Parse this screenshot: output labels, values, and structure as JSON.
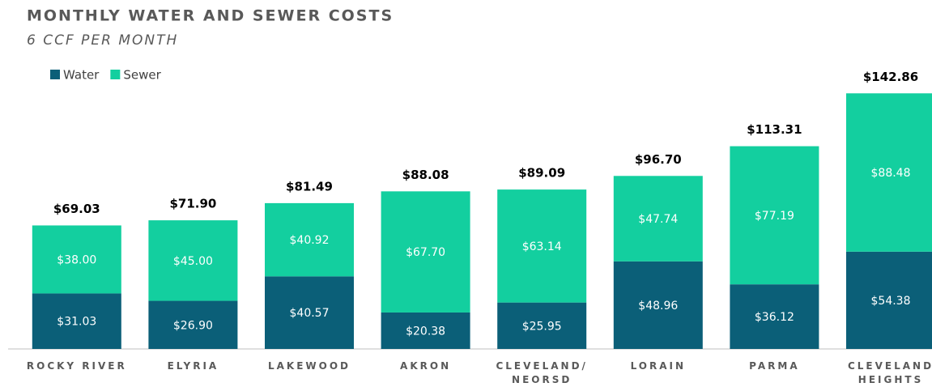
{
  "chart_data": {
    "type": "stacked_bar",
    "title": "MONTHLY WATER AND SEWER COSTS",
    "subtitle": "6 CCF PER MONTH",
    "categories": [
      "ROCKY RIVER",
      "ELYRIA",
      "LAKEWOOD",
      "AKRON",
      "CLEVELAND/\nNEORSD",
      "LORAIN",
      "PARMA",
      "CLEVELAND\nHEIGHTS"
    ],
    "series": [
      {
        "name": "Water",
        "color": "#0b5f78",
        "values": [
          31.03,
          26.9,
          40.57,
          20.38,
          25.95,
          48.96,
          36.12,
          54.38
        ],
        "value_labels": [
          "$31.03",
          "$26.90",
          "$40.57",
          "$20.38",
          "$25.95",
          "$48.96",
          "$36.12",
          "$54.38"
        ]
      },
      {
        "name": "Sewer",
        "color": "#13cf9f",
        "values": [
          38.0,
          45.0,
          40.92,
          67.7,
          63.14,
          47.74,
          77.19,
          88.48
        ],
        "value_labels": [
          "$38.00",
          "$45.00",
          "$40.92",
          "$67.70",
          "$63.14",
          "$47.74",
          "$77.19",
          "$88.48"
        ]
      }
    ],
    "total_labels": [
      "$69.03",
      "$71.90",
      "$81.49",
      "$88.08",
      "$89.09",
      "$96.70",
      "$113.31",
      "$142.86"
    ],
    "ylim": [
      0,
      150
    ],
    "legend": "top-left"
  }
}
